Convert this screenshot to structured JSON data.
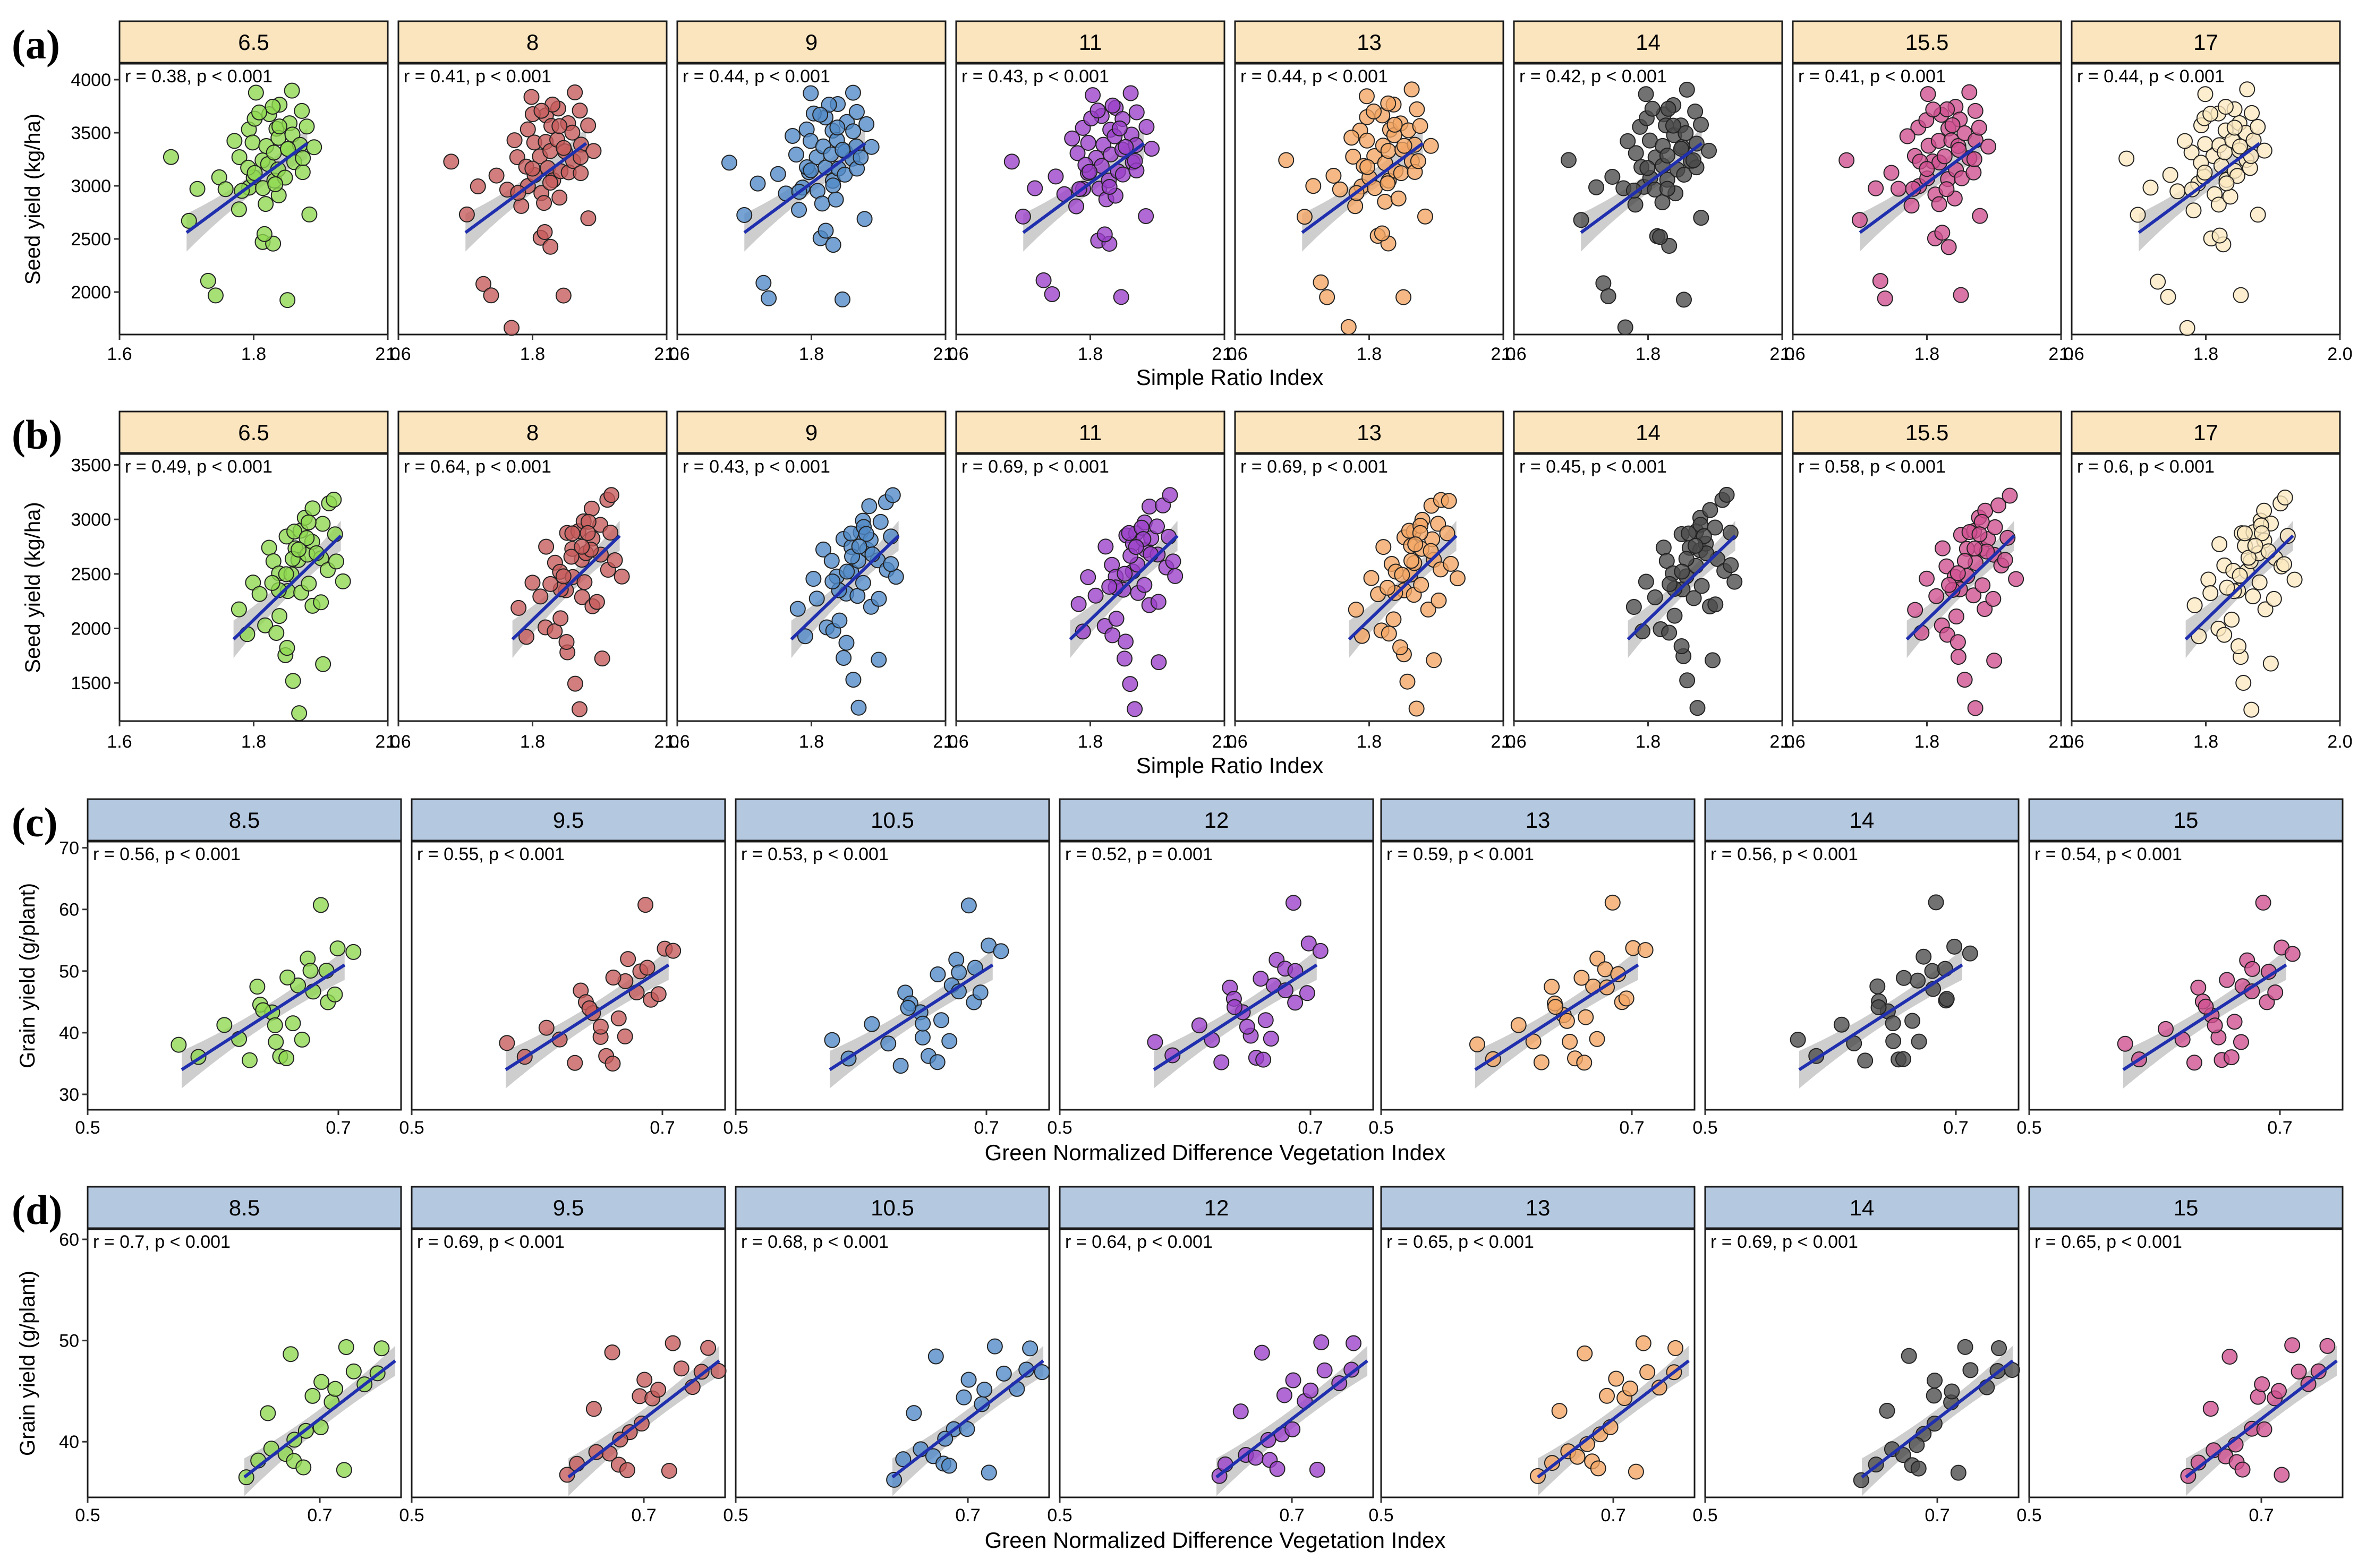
{
  "figure_description_colors": {
    "strip_a": "#fbe5bf",
    "strip_c": "#b4c8e0",
    "fit_line": "#1f2fae",
    "ci_band": "#bdbdbd"
  },
  "series_colors": {
    "green": "#8ed84f",
    "red": "#c75a5a",
    "blue": "#4f89c6",
    "purple": "#9a3fc9",
    "orange": "#f3a563",
    "black": "#4a4a4a",
    "pink": "#cf4e8f",
    "cream": "#fbe9c0"
  },
  "chart_data": [
    {
      "id": "a",
      "panel_label": "(a)",
      "type": "scatter",
      "facet_labels": [
        "6.5",
        "8",
        "9",
        "11",
        "13",
        "14",
        "15.5",
        "17"
      ],
      "annotations": [
        "r = 0.38, p < 0.001",
        "r = 0.41, p < 0.001",
        "r = 0.44, p < 0.001",
        "r = 0.43, p < 0.001",
        "r = 0.44, p < 0.001",
        "r = 0.42, p < 0.001",
        "r = 0.41, p < 0.001",
        "r = 0.44, p < 0.001"
      ],
      "xlabel": "Simple Ratio Index",
      "ylabel": "Seed yield (kg/ha)",
      "xlim": [
        1.6,
        2.0
      ],
      "ylim": [
        1600,
        4150
      ],
      "xticks": [
        1.6,
        1.8,
        2.0
      ],
      "xtick_labels": [
        "1.6",
        "1.8",
        "2.0"
      ],
      "yticks": [
        2000,
        2500,
        3000,
        3500,
        4000
      ],
      "ytick_labels": [
        "2000",
        "2500",
        "3000",
        "3500",
        "4000"
      ],
      "fit": {
        "x0": 1.7,
        "x1": 1.88,
        "y0": 2560,
        "y1": 3400
      },
      "x": [
        1.68,
        1.7,
        1.72,
        1.73,
        1.74,
        1.75,
        1.76,
        1.77,
        1.78,
        1.78,
        1.79,
        1.79,
        1.8,
        1.8,
        1.8,
        1.81,
        1.81,
        1.81,
        1.82,
        1.82,
        1.82,
        1.82,
        1.83,
        1.83,
        1.83,
        1.83,
        1.84,
        1.84,
        1.84,
        1.84,
        1.85,
        1.85,
        1.85,
        1.85,
        1.86,
        1.86,
        1.86,
        1.87,
        1.87,
        1.87,
        1.88,
        1.88,
        1.89,
        1.8,
        1.83,
        1.78,
        1.81,
        1.84,
        1.86,
        1.79,
        1.82,
        1.85,
        1.77,
        1.8,
        1.83,
        1.87
      ],
      "y": [
        3250,
        2700,
        3000,
        2100,
        1950,
        3100,
        2950,
        1650,
        3300,
        2800,
        3550,
        3000,
        3850,
        3400,
        3100,
        3250,
        2950,
        2500,
        3650,
        3400,
        3200,
        2850,
        3550,
        3300,
        3050,
        2450,
        3750,
        3450,
        3150,
        2900,
        3600,
        3350,
        3100,
        1950,
        3950,
        3500,
        3250,
        3700,
        3400,
        3150,
        3550,
        2700,
        3350,
        3650,
        3750,
        2950,
        3700,
        3550,
        3900,
        3200,
        2550,
        3350,
        3450,
        3150,
        3000,
        3250
      ]
    },
    {
      "id": "b",
      "panel_label": "(b)",
      "type": "scatter",
      "facet_labels": [
        "6.5",
        "8",
        "9",
        "11",
        "13",
        "14",
        "15.5",
        "17"
      ],
      "annotations": [
        "r = 0.49, p < 0.001",
        "r = 0.64, p < 0.001",
        "r = 0.43, p < 0.001",
        "r = 0.69, p < 0.001",
        "r = 0.69, p < 0.001",
        "r = 0.45, p < 0.001",
        "r = 0.58, p < 0.001",
        "r = 0.6, p < 0.001"
      ],
      "xlabel": "Simple Ratio Index",
      "ylabel": "Seed yield (kg/ha)",
      "xlim": [
        1.6,
        2.0
      ],
      "ylim": [
        1150,
        3600
      ],
      "xticks": [
        1.6,
        1.8,
        2.0
      ],
      "xtick_labels": [
        "1.6",
        "1.8",
        "2.0"
      ],
      "yticks": [
        1500,
        2000,
        2500,
        3000,
        3500
      ],
      "ytick_labels": [
        "1500",
        "2000",
        "2500",
        "3000",
        "3500"
      ],
      "fit": {
        "x0": 1.77,
        "x1": 1.93,
        "y0": 1900,
        "y1": 2850
      },
      "x": [
        1.78,
        1.79,
        1.8,
        1.81,
        1.82,
        1.82,
        1.83,
        1.83,
        1.84,
        1.84,
        1.85,
        1.85,
        1.85,
        1.86,
        1.86,
        1.86,
        1.87,
        1.87,
        1.87,
        1.88,
        1.88,
        1.88,
        1.89,
        1.89,
        1.89,
        1.9,
        1.9,
        1.91,
        1.91,
        1.92,
        1.92,
        1.93,
        1.85,
        1.87,
        1.89,
        1.84,
        1.86,
        1.9,
        1.88,
        1.83,
        1.86,
        1.88,
        1.9,
        1.92,
        1.87,
        1.85
      ],
      "y": [
        2200,
        1950,
        2450,
        2300,
        2750,
        2000,
        2600,
        1950,
        2500,
        2100,
        2850,
        2350,
        1750,
        2750,
        2500,
        1500,
        2900,
        2600,
        2300,
        3000,
        2700,
        2400,
        3100,
        2800,
        2200,
        2950,
        2650,
        3150,
        2550,
        3200,
        2850,
        2450,
        1850,
        1250,
        2700,
        2350,
        2900,
        2250,
        2950,
        2400,
        2650,
        2850,
        1700,
        2600,
        2750,
        2500
      ]
    },
    {
      "id": "c",
      "panel_label": "(c)",
      "type": "scatter",
      "facet_labels": [
        "8.5",
        "9.5",
        "10.5",
        "12",
        "13",
        "14",
        "15"
      ],
      "annotations": [
        "r = 0.56, p < 0.001",
        "r = 0.55, p < 0.001",
        "r = 0.53, p < 0.001",
        "r = 0.52, p = 0.001",
        "r = 0.59, p < 0.001",
        "r = 0.56, p < 0.001",
        "r = 0.54, p < 0.001"
      ],
      "xlabel": "Green Normalized Difference Vegetation Index",
      "ylabel": "Grain yield (g/plant)",
      "xlim": [
        0.5,
        0.75
      ],
      "ylim": [
        27.5,
        71
      ],
      "xticks": [
        0.5,
        0.7
      ],
      "xtick_labels": [
        "0.5",
        "0.7"
      ],
      "yticks": [
        30,
        40,
        50,
        60,
        70
      ],
      "ytick_labels": [
        "30",
        "40",
        "50",
        "60",
        "70"
      ],
      "fit": {
        "x0": 0.575,
        "x1": 0.705,
        "y0": 34,
        "y1": 51
      },
      "x": [
        0.575,
        0.59,
        0.61,
        0.62,
        0.63,
        0.635,
        0.64,
        0.645,
        0.65,
        0.655,
        0.66,
        0.665,
        0.67,
        0.675,
        0.68,
        0.685,
        0.69,
        0.695,
        0.7,
        0.71,
        0.64,
        0.66,
        0.67,
        0.68,
        0.65,
        0.69
      ],
      "y": [
        38.5,
        36,
        41,
        38.5,
        35,
        47,
        45,
        43,
        39,
        36,
        35.5,
        42,
        48,
        52,
        50,
        61,
        45,
        46,
        54,
        53,
        44,
        49,
        39,
        47,
        41.5,
        50
      ]
    },
    {
      "id": "d",
      "panel_label": "(d)",
      "type": "scatter",
      "facet_labels": [
        "8.5",
        "9.5",
        "10.5",
        "12",
        "13",
        "14",
        "15"
      ],
      "annotations": [
        "r = 0.7, p < 0.001",
        "r = 0.69, p < 0.001",
        "r = 0.68, p < 0.001",
        "r = 0.64, p < 0.001",
        "r = 0.65, p < 0.001",
        "r = 0.69, p < 0.001",
        "r = 0.65, p < 0.001"
      ],
      "xlabel": "Green Normalized Difference Vegetation Index",
      "ylabel": "Grain yield (g/plant)",
      "xlim": [
        0.5,
        0.77
      ],
      "ylim": [
        34.5,
        61
      ],
      "xticks": [
        0.5,
        0.7
      ],
      "xtick_labels": [
        "0.5",
        "0.7"
      ],
      "yticks": [
        40,
        50,
        60
      ],
      "ytick_labels": [
        "40",
        "50",
        "60"
      ],
      "fit": {
        "x0": 0.635,
        "x1": 0.765,
        "y0": 36.5,
        "y1": 48
      },
      "x": [
        0.635,
        0.645,
        0.655,
        0.66,
        0.67,
        0.675,
        0.68,
        0.685,
        0.69,
        0.695,
        0.7,
        0.71,
        0.715,
        0.72,
        0.725,
        0.73,
        0.74,
        0.75,
        0.755,
        0.765,
        0.68,
        0.7
      ],
      "y": [
        36.5,
        38,
        43,
        39,
        38.5,
        48.5,
        38,
        37.5,
        41,
        44.5,
        41.5,
        44,
        45,
        37,
        49.5,
        47,
        45.5,
        47,
        49.5,
        47,
        40,
        46
      ]
    }
  ]
}
